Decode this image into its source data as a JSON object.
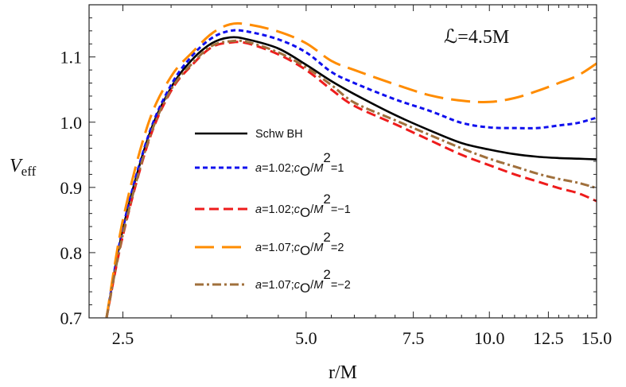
{
  "chart_data": {
    "type": "line",
    "xlabel": "r/M",
    "ylabel": {
      "main": "V",
      "sub": "eff"
    },
    "annotation": "ℒ=4.5M",
    "x_scale": "log",
    "xlim": [
      2.2,
      15
    ],
    "ylim": [
      0.7,
      1.18
    ],
    "x_ticks": [
      "2.5",
      "5.0",
      "7.5",
      "10.0",
      "12.5",
      "15.0"
    ],
    "y_ticks": [
      "0.7",
      "0.8",
      "0.9",
      "1.0",
      "1.1"
    ],
    "grid": false,
    "legend_position": "center",
    "x": [
      2.35,
      2.5,
      2.75,
      3,
      3.25,
      3.5,
      3.75,
      4,
      4.5,
      5,
      5.5,
      6,
      7,
      8,
      9,
      10,
      11,
      12,
      13,
      14,
      15
    ],
    "series": [
      {
        "name": "Schw BH",
        "color": "#000000",
        "style": "solid",
        "label": [
          {
            "t": "Schw BH"
          }
        ],
        "values": [
          0.7,
          0.836,
          0.976,
          1.053,
          1.096,
          1.121,
          1.13,
          1.127,
          1.113,
          1.088,
          1.063,
          1.043,
          1.011,
          0.987,
          0.968,
          0.958,
          0.951,
          0.947,
          0.945,
          0.944,
          0.943
        ]
      },
      {
        "name": "a=1.02;cO/M2=1",
        "color": "#1010ee",
        "style": "short-dash",
        "label": [
          {
            "t": "a",
            "i": true
          },
          {
            "t": "=1.02;"
          },
          {
            "t": "c",
            "i": true
          },
          {
            "t": "O",
            "sub": true
          },
          {
            "t": "/"
          },
          {
            "t": "M",
            "i": true
          },
          {
            "t": "2",
            "sup": true
          },
          {
            "t": "=1"
          }
        ],
        "values": [
          0.7,
          0.838,
          0.978,
          1.057,
          1.102,
          1.129,
          1.14,
          1.139,
          1.127,
          1.107,
          1.077,
          1.06,
          1.035,
          1.017,
          0.999,
          0.992,
          0.991,
          0.991,
          0.995,
          0.999,
          1.007
        ]
      },
      {
        "name": "a=1.02;cO/M2=-1",
        "color": "#ee1c1c",
        "style": "dash",
        "label": [
          {
            "t": "a",
            "i": true
          },
          {
            "t": "=1.02;"
          },
          {
            "t": "c",
            "i": true
          },
          {
            "t": "O",
            "sub": true
          },
          {
            "t": "/"
          },
          {
            "t": "M",
            "i": true
          },
          {
            "t": "2",
            "sup": true
          },
          {
            "t": "=−1"
          }
        ],
        "values": [
          0.7,
          0.826,
          0.968,
          1.048,
          1.088,
          1.115,
          1.122,
          1.121,
          1.104,
          1.08,
          1.05,
          1.025,
          0.997,
          0.972,
          0.95,
          0.934,
          0.92,
          0.909,
          0.899,
          0.891,
          0.879
        ]
      },
      {
        "name": "a=1.07;cO/M2=2",
        "color": "#ff8c00",
        "style": "long-dash",
        "label": [
          {
            "t": "a",
            "i": true
          },
          {
            "t": "=1.07;"
          },
          {
            "t": "c",
            "i": true
          },
          {
            "t": "O",
            "sub": true
          },
          {
            "t": "/"
          },
          {
            "t": "M",
            "i": true
          },
          {
            "t": "2",
            "sup": true
          },
          {
            "t": "=2"
          }
        ],
        "values": [
          0.7,
          0.85,
          0.997,
          1.07,
          1.107,
          1.136,
          1.15,
          1.15,
          1.139,
          1.121,
          1.094,
          1.08,
          1.058,
          1.041,
          1.033,
          1.031,
          1.037,
          1.048,
          1.06,
          1.072,
          1.09
        ]
      },
      {
        "name": "a=1.07;cO/M2=-2",
        "color": "#a0703c",
        "style": "dot-dash",
        "label": [
          {
            "t": "a",
            "i": true
          },
          {
            "t": "=1.07;"
          },
          {
            "t": "c",
            "i": true
          },
          {
            "t": "O",
            "sub": true
          },
          {
            "t": "/"
          },
          {
            "t": "M",
            "i": true
          },
          {
            "t": "2",
            "sup": true
          },
          {
            "t": "=−2"
          }
        ],
        "values": [
          0.7,
          0.828,
          0.97,
          1.05,
          1.09,
          1.117,
          1.124,
          1.123,
          1.107,
          1.084,
          1.057,
          1.03,
          1.003,
          0.98,
          0.96,
          0.944,
          0.932,
          0.921,
          0.913,
          0.907,
          0.899
        ]
      }
    ]
  }
}
